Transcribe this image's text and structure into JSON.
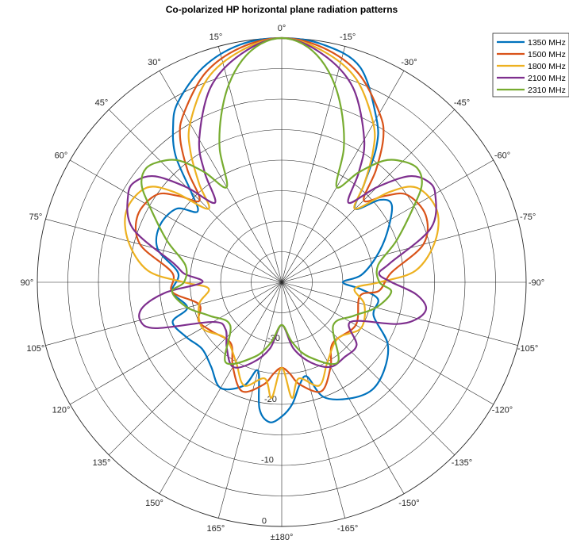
{
  "chart_data": {
    "type": "polar-line",
    "title": "Co-polarized HP horizontal plane radiation patterns",
    "theta_zero_location": "top",
    "theta_direction": "counterclockwise",
    "theta_tick_labels": [
      "0°",
      "15°",
      "30°",
      "45°",
      "60°",
      "75°",
      "90°",
      "105°",
      "120°",
      "135°",
      "150°",
      "165°",
      "±180°",
      "-165°",
      "-150°",
      "-135°",
      "-120°",
      "-105°",
      "-90°",
      "-75°",
      "-60°",
      "-45°",
      "-30°",
      "-15°"
    ],
    "rlim": [
      -40,
      0
    ],
    "r_rings": [
      -35,
      -30,
      -25,
      -20,
      -15,
      -10,
      -5,
      0
    ],
    "r_tick_labels": [
      "-30",
      "-20",
      "-10",
      "0"
    ],
    "r_label_angle": 177,
    "grid": true,
    "legend": "top-right",
    "series": [
      {
        "name": "1350 MHz",
        "color": "#0072BD",
        "theta": [
          0,
          10,
          20,
          30,
          35,
          40,
          45,
          50,
          55,
          65,
          75,
          85,
          95,
          105,
          110,
          120,
          130,
          140,
          150,
          160,
          165,
          170,
          175,
          180,
          185,
          190,
          195,
          200,
          210,
          220,
          230,
          240,
          250,
          260,
          265,
          270,
          275,
          285,
          295,
          305,
          310,
          315,
          320,
          325,
          330,
          340,
          350,
          360
        ],
        "r": [
          0,
          -0.5,
          -2.5,
          -6,
          -9,
          -13,
          -19,
          -22,
          -19,
          -18,
          -19,
          -23,
          -22,
          -24,
          -21,
          -22,
          -23,
          -22,
          -20,
          -22,
          -25,
          -19,
          -17,
          -18,
          -20,
          -23,
          -24,
          -20,
          -18,
          -17,
          -18,
          -20,
          -24,
          -24,
          -27,
          -30,
          -27,
          -24,
          -21,
          -18,
          -19,
          -23,
          -19,
          -13,
          -9,
          -2.5,
          -0.5,
          0
        ]
      },
      {
        "name": "1500 MHz",
        "color": "#D95319",
        "theta": [
          0,
          10,
          20,
          30,
          35,
          40,
          45,
          50,
          55,
          65,
          75,
          85,
          95,
          105,
          115,
          125,
          140,
          150,
          160,
          170,
          175,
          180,
          185,
          190,
          200,
          210,
          220,
          240,
          260,
          265,
          275,
          285,
          295,
          305,
          310,
          315,
          320,
          325,
          330,
          340,
          350,
          360
        ],
        "r": [
          0,
          -1,
          -3.5,
          -8,
          -11,
          -16,
          -21,
          -18,
          -15,
          -14,
          -16,
          -22,
          -22,
          -26,
          -25,
          -26,
          -27,
          -24,
          -21,
          -23,
          -25,
          -26,
          -25,
          -23,
          -21,
          -24,
          -27,
          -26,
          -27,
          -24,
          -22,
          -16,
          -14,
          -15,
          -18,
          -21,
          -16,
          -11,
          -8,
          -3.5,
          -1,
          0
        ]
      },
      {
        "name": "1800 MHz",
        "color": "#EDB120",
        "theta": [
          0,
          10,
          20,
          30,
          35,
          40,
          45,
          50,
          55,
          65,
          75,
          85,
          90,
          95,
          105,
          120,
          135,
          150,
          160,
          170,
          175,
          180,
          185,
          190,
          200,
          210,
          225,
          240,
          255,
          265,
          270,
          275,
          285,
          295,
          305,
          310,
          315,
          320,
          325,
          330,
          340,
          350,
          360
        ],
        "r": [
          0,
          -1.5,
          -4.5,
          -10,
          -14,
          -19,
          -23,
          -17,
          -13,
          -12,
          -14,
          -18,
          -24,
          -28,
          -26,
          -25,
          -27,
          -25,
          -22,
          -24,
          -21,
          -26,
          -21,
          -24,
          -22,
          -25,
          -27,
          -25,
          -26,
          -28,
          -24,
          -18,
          -14,
          -12,
          -13,
          -17,
          -23,
          -19,
          -14,
          -10,
          -4.5,
          -1.5,
          0
        ]
      },
      {
        "name": "2100 MHz",
        "color": "#7E2F8E",
        "theta": [
          0,
          10,
          20,
          30,
          35,
          40,
          45,
          50,
          55,
          60,
          70,
          80,
          85,
          90,
          95,
          100,
          105,
          110,
          120,
          130,
          140,
          150,
          160,
          170,
          180,
          190,
          200,
          210,
          220,
          230,
          240,
          250,
          255,
          260,
          265,
          270,
          275,
          280,
          290,
          300,
          305,
          310,
          315,
          320,
          325,
          330,
          340,
          350,
          360
        ],
        "r": [
          0,
          -2,
          -6,
          -13,
          -18,
          -23,
          -18,
          -13,
          -11,
          -11,
          -14,
          -22,
          -24,
          -27,
          -21,
          -17,
          -16,
          -18,
          -27,
          -28,
          -26,
          -24,
          -26,
          -29,
          -33,
          -29,
          -26,
          -24,
          -24,
          -24,
          -27,
          -20,
          -17,
          -16,
          -18,
          -22,
          -24,
          -22,
          -14,
          -11,
          -11,
          -13,
          -18,
          -23,
          -18,
          -13,
          -6,
          -2,
          0
        ]
      },
      {
        "name": "2310 MHz",
        "color": "#77AC30",
        "theta": [
          0,
          5,
          10,
          15,
          20,
          25,
          30,
          35,
          40,
          45,
          50,
          55,
          60,
          70,
          80,
          90,
          95,
          105,
          115,
          130,
          145,
          160,
          170,
          180,
          190,
          200,
          215,
          230,
          245,
          255,
          265,
          270,
          280,
          290,
          300,
          305,
          310,
          315,
          320,
          325,
          330,
          335,
          340,
          345,
          350,
          355,
          360
        ],
        "r": [
          0,
          -0.8,
          -3,
          -6.5,
          -11,
          -16,
          -22,
          -18,
          -14,
          -12,
          -11,
          -12,
          -15,
          -20,
          -24,
          -24,
          -22,
          -24,
          -27,
          -29,
          -24,
          -27,
          -30,
          -33,
          -30,
          -27,
          -24,
          -29,
          -27,
          -24,
          -22,
          -24,
          -24,
          -20,
          -15,
          -12,
          -11,
          -12,
          -14,
          -18,
          -22,
          -16,
          -11,
          -6.5,
          -3,
          -0.8,
          0
        ]
      }
    ]
  }
}
